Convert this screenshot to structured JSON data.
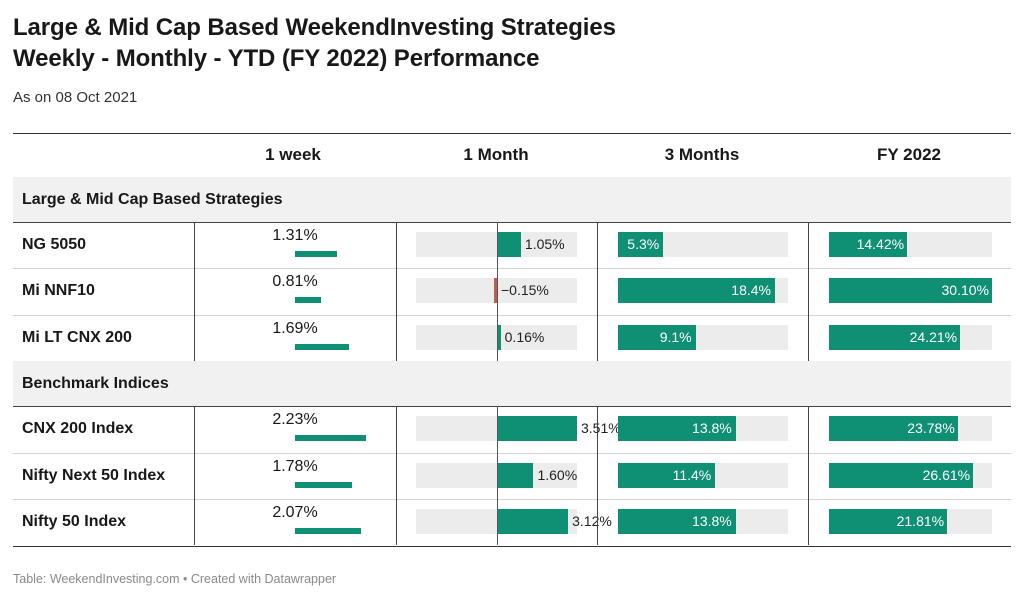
{
  "header": {
    "title_line1": "Large & Mid Cap Based WeekendInvesting Strategies",
    "title_line2": "Weekly - Monthly - YTD (FY 2022) Performance",
    "subtitle": "As on 08 Oct 2021"
  },
  "footer": "Table: WeekendInvesting.com • Created with Datawrapper",
  "colors": {
    "positive": "#0f8f74",
    "negative": "#b85e57",
    "track": "#ececec",
    "band": "#f1f1f1"
  },
  "chart_data": {
    "type": "table",
    "columns": [
      "",
      "1 week",
      "1 Month",
      "3 Months",
      "FY 2022"
    ],
    "groups": [
      {
        "name": "Large & Mid Cap Based Strategies",
        "rows": [
          {
            "name": "NG 5050",
            "week": "1.31%",
            "month": "1.05%",
            "m3": "5.3%",
            "fy": "14.42%",
            "week_v": 1.31,
            "month_v": 1.05,
            "m3_v": 5.3,
            "fy_v": 14.42
          },
          {
            "name": "Mi NNF10",
            "week": "0.81%",
            "month": "−0.15%",
            "m3": "18.4%",
            "fy": "30.10%",
            "week_v": 0.81,
            "month_v": -0.15,
            "m3_v": 18.4,
            "fy_v": 30.1
          },
          {
            "name": "Mi LT CNX 200",
            "week": "1.69%",
            "month": "0.16%",
            "m3": "9.1%",
            "fy": "24.21%",
            "week_v": 1.69,
            "month_v": 0.16,
            "m3_v": 9.1,
            "fy_v": 24.21
          }
        ]
      },
      {
        "name": "Benchmark Indices",
        "rows": [
          {
            "name": "CNX 200 Index",
            "week": "2.23%",
            "month": "3.51%",
            "m3": "13.8%",
            "fy": "23.78%",
            "week_v": 2.23,
            "month_v": 3.51,
            "m3_v": 13.8,
            "fy_v": 23.78
          },
          {
            "name": "Nifty Next 50 Index",
            "week": "1.78%",
            "month": "1.60%",
            "m3": "11.4%",
            "fy": "26.61%",
            "week_v": 1.78,
            "month_v": 1.6,
            "m3_v": 11.4,
            "fy_v": 26.61
          },
          {
            "name": "Nifty 50 Index",
            "week": "2.07%",
            "month": "3.12%",
            "m3": "13.8%",
            "fy": "21.81%",
            "week_v": 2.07,
            "month_v": 3.12,
            "m3_v": 13.8,
            "fy_v": 21.81
          }
        ]
      }
    ],
    "scales": {
      "week_max": 2.23,
      "month_range": [
        -3.51,
        3.51
      ],
      "m3_max": 18.4,
      "fy_max": 30.1
    }
  }
}
